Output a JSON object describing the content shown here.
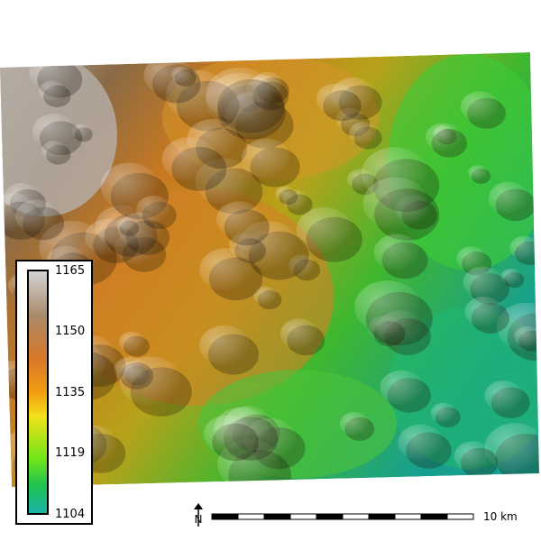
{
  "map": {
    "colors": {
      "gray": "#c9c2bb",
      "brown": "#a07040",
      "orange": "#e0821e",
      "yellow": "#e6d21a",
      "green": "#45d13a",
      "teal": "#1fb39a"
    }
  },
  "legend": {
    "labels": [
      "1165",
      "1150",
      "1135",
      "1119",
      "1104"
    ]
  },
  "north_arrow": {
    "letter": "N"
  },
  "scale_bar": {
    "label": "10 km",
    "segments": 10
  }
}
